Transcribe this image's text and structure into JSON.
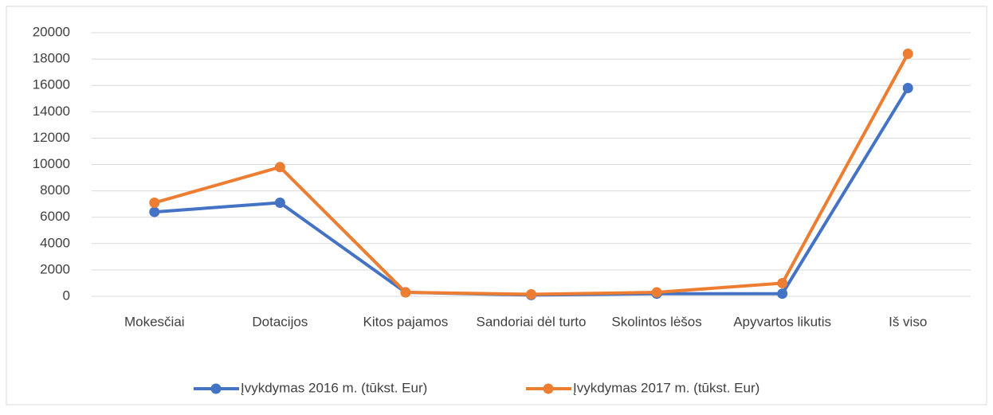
{
  "chart_data": {
    "type": "line",
    "categories": [
      "Mokesčiai",
      "Dotacijos",
      "Kitos pajamos",
      "Sandoriai dėl turto",
      "Skolintos lėšos",
      "Apyvartos likutis",
      "Iš viso"
    ],
    "series": [
      {
        "name": "Įvykdymas 2016 m. (tūkst. Eur)",
        "color": "#4472c4",
        "values": [
          6400,
          7100,
          300,
          100,
          200,
          200,
          15800
        ]
      },
      {
        "name": "Įvykdymas 2017 m. (tūkst. Eur)",
        "color": "#ed7d31",
        "values": [
          7100,
          9800,
          300,
          150,
          300,
          1000,
          18400
        ]
      }
    ],
    "ylim": [
      0,
      20000
    ],
    "yticks": [
      0,
      2000,
      4000,
      6000,
      8000,
      10000,
      12000,
      14000,
      16000,
      18000,
      20000
    ],
    "grid": true,
    "legend": "bottom"
  }
}
